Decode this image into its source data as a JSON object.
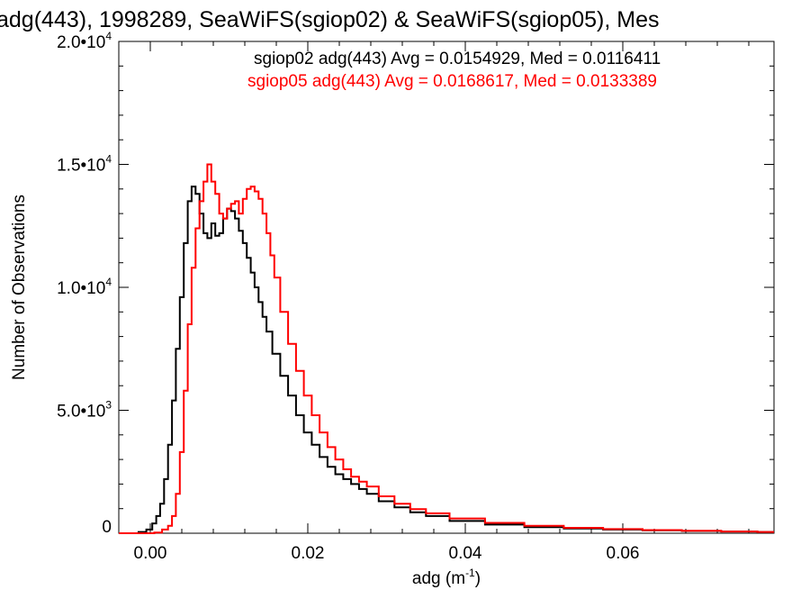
{
  "chart_data": {
    "type": "line",
    "title": "adg(443), 1998289, SeaWiFS(sgiop02) & SeaWiFS(sgiop05), Mes",
    "xlabel": "adg (m⁻¹)",
    "ylabel": "Number of Observations",
    "xlim": [
      -0.004,
      0.0792
    ],
    "ylim": [
      0,
      20000
    ],
    "xticks": [
      {
        "value": 0.0,
        "label": "0.00"
      },
      {
        "value": 0.02,
        "label": "0.02"
      },
      {
        "value": 0.04,
        "label": "0.04"
      },
      {
        "value": 0.06,
        "label": "0.06"
      }
    ],
    "yticks": [
      {
        "value": 0,
        "base": "0",
        "exp": ""
      },
      {
        "value": 5000,
        "base": "5.0•10",
        "exp": "3"
      },
      {
        "value": 10000,
        "base": "1.0•10",
        "exp": "4"
      },
      {
        "value": 15000,
        "base": "1.5•10",
        "exp": "4"
      },
      {
        "value": 20000,
        "base": "2.0•10",
        "exp": "4"
      }
    ],
    "series": [
      {
        "name": "sgiop02 adg(443)",
        "color": "#000000",
        "legend": "sgiop02 adg(443) Avg = 0.0154929, Med = 0.0116411",
        "x": [
          -0.004,
          -0.002,
          -0.001,
          0.0,
          0.0005,
          0.001,
          0.0015,
          0.002,
          0.0025,
          0.003,
          0.0035,
          0.004,
          0.0045,
          0.005,
          0.0055,
          0.006,
          0.0065,
          0.007,
          0.0075,
          0.008,
          0.0085,
          0.009,
          0.0095,
          0.01,
          0.0105,
          0.011,
          0.0115,
          0.012,
          0.0125,
          0.013,
          0.0135,
          0.014,
          0.0145,
          0.015,
          0.016,
          0.017,
          0.018,
          0.019,
          0.02,
          0.021,
          0.022,
          0.023,
          0.024,
          0.025,
          0.026,
          0.027,
          0.028,
          0.03,
          0.032,
          0.034,
          0.036,
          0.04,
          0.045,
          0.05,
          0.055,
          0.06,
          0.065,
          0.07,
          0.075,
          0.0792
        ],
        "y": [
          0,
          0,
          50,
          150,
          400,
          700,
          1200,
          2200,
          3600,
          5400,
          7500,
          9600,
          11800,
          13500,
          14100,
          13800,
          13000,
          12200,
          12000,
          12600,
          12100,
          12200,
          12800,
          13200,
          13100,
          12800,
          12300,
          11800,
          11200,
          10600,
          10000,
          9400,
          8800,
          8200,
          7300,
          6400,
          5600,
          4800,
          4100,
          3600,
          3100,
          2700,
          2400,
          2200,
          2000,
          1800,
          1600,
          1300,
          1050,
          850,
          700,
          500,
          350,
          250,
          190,
          150,
          120,
          90,
          70,
          50
        ]
      },
      {
        "name": "sgiop05 adg(443)",
        "color": "#ff0000",
        "legend": "sgiop05 adg(443) Avg = 0.0168617, Med = 0.0133389",
        "x": [
          -0.004,
          0.0,
          0.001,
          0.002,
          0.0025,
          0.003,
          0.0035,
          0.004,
          0.0045,
          0.005,
          0.0055,
          0.006,
          0.0065,
          0.007,
          0.0075,
          0.008,
          0.0085,
          0.009,
          0.0095,
          0.01,
          0.0105,
          0.011,
          0.0115,
          0.012,
          0.0125,
          0.013,
          0.0135,
          0.014,
          0.0145,
          0.015,
          0.0155,
          0.016,
          0.017,
          0.018,
          0.019,
          0.02,
          0.021,
          0.022,
          0.023,
          0.024,
          0.025,
          0.026,
          0.027,
          0.028,
          0.03,
          0.032,
          0.034,
          0.036,
          0.04,
          0.045,
          0.05,
          0.055,
          0.06,
          0.065,
          0.07,
          0.075,
          0.0792
        ],
        "y": [
          0,
          0,
          30,
          150,
          300,
          700,
          1600,
          3300,
          5800,
          8500,
          10800,
          12400,
          13500,
          14300,
          15000,
          14300,
          13800,
          13000,
          12800,
          13200,
          13400,
          13500,
          13000,
          13600,
          14000,
          14100,
          13900,
          13600,
          13000,
          12200,
          11300,
          10400,
          9000,
          7700,
          6600,
          5600,
          4800,
          4100,
          3500,
          3000,
          2600,
          2300,
          2100,
          1900,
          1500,
          1200,
          980,
          810,
          600,
          420,
          300,
          220,
          170,
          130,
          100,
          70,
          50
        ]
      }
    ]
  }
}
